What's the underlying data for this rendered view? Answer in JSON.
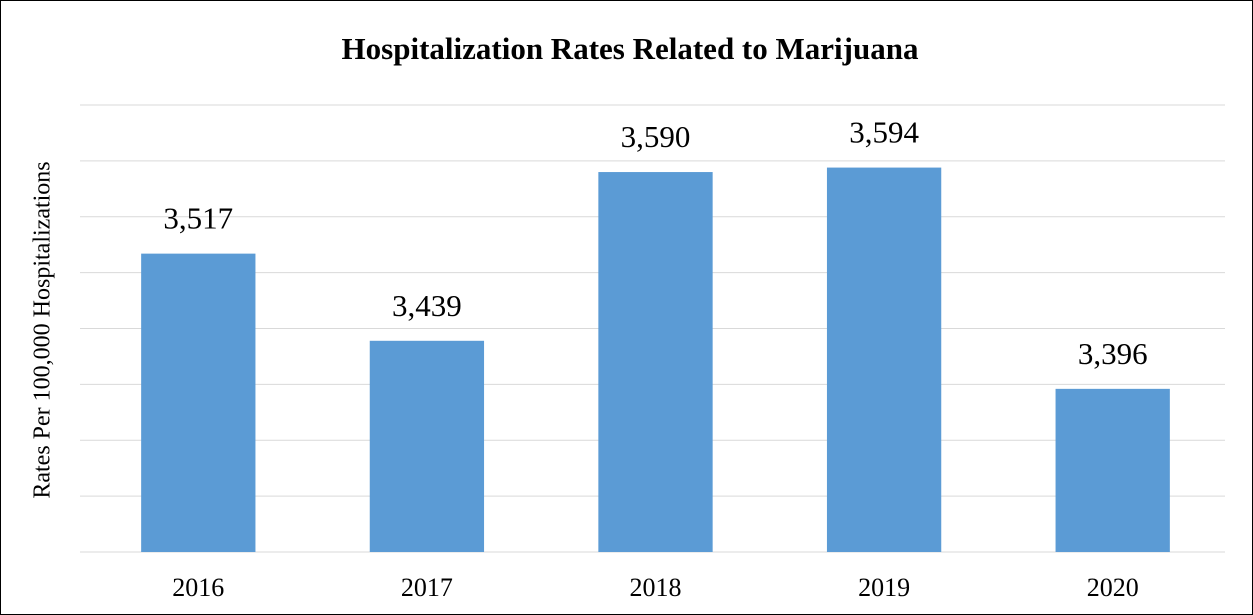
{
  "chart_data": {
    "type": "bar",
    "title": "Hospitalization Rates Related to Marijuana",
    "y_label": "Rates Per 100,000 Hospitalizations",
    "categories": [
      "2016",
      "2017",
      "2018",
      "2019",
      "2020"
    ],
    "values": [
      3517,
      3439,
      3590,
      3594,
      3396
    ],
    "value_labels": [
      "3,517",
      "3,439",
      "3,590",
      "3,594",
      "3,396"
    ],
    "color": "#5b9bd5",
    "ylim": [
      3250,
      3650
    ],
    "yticks": [
      3250,
      3300,
      3350,
      3400,
      3450,
      3500,
      3550,
      3600,
      3650
    ],
    "grid": true
  }
}
